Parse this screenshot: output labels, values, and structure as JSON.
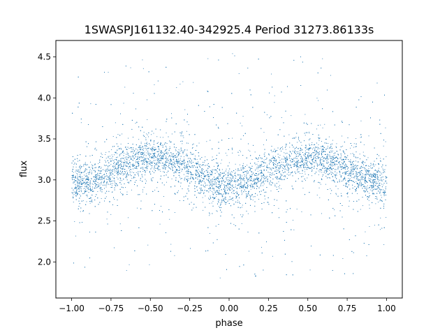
{
  "chart_data": {
    "type": "scatter",
    "title": "1SWASPJ161132.40-342925.4 Period 31273.86133s",
    "xlabel": "phase",
    "ylabel": "flux",
    "xlim": [
      -1.1,
      1.1
    ],
    "ylim": [
      1.56,
      4.7
    ],
    "xticks": [
      "−1.00",
      "−0.75",
      "−0.50",
      "−0.25",
      "0.00",
      "0.25",
      "0.50",
      "0.75",
      "1.00"
    ],
    "xtick_values": [
      -1.0,
      -0.75,
      -0.5,
      -0.25,
      0.0,
      0.25,
      0.5,
      0.75,
      1.0
    ],
    "yticks": [
      "2.0",
      "2.5",
      "3.0",
      "3.5",
      "4.0",
      "4.5"
    ],
    "ytick_values": [
      2.0,
      2.5,
      3.0,
      3.5,
      4.0,
      4.5
    ],
    "grid": false,
    "marker_color": "#1f77b4",
    "series": [
      {
        "x": [
          -1.0,
          -0.9,
          -0.8,
          -0.7,
          -0.6,
          -0.5,
          -0.4,
          -0.3,
          -0.2,
          -0.1,
          0.0,
          0.1,
          0.2,
          0.3,
          0.4,
          0.5,
          0.6,
          0.7,
          0.8,
          0.9,
          1.0
        ],
        "y": [
          2.95,
          2.98,
          3.05,
          3.15,
          3.23,
          3.27,
          3.25,
          3.18,
          3.07,
          2.97,
          2.93,
          2.97,
          3.06,
          3.16,
          3.24,
          3.27,
          3.24,
          3.17,
          3.07,
          2.99,
          2.95
        ]
      }
    ]
  }
}
